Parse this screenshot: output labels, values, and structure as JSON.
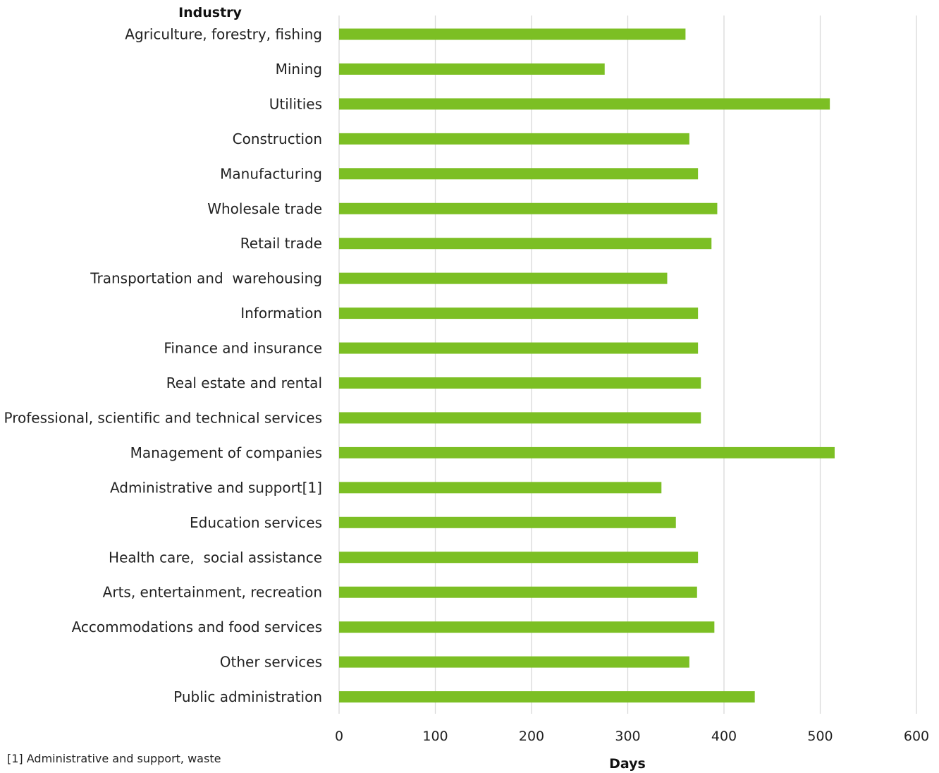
{
  "chart_data": {
    "type": "bar",
    "orientation": "horizontal",
    "y_column_title": "Industry",
    "xlabel": "Days",
    "xlim": [
      0,
      600
    ],
    "xticks": [
      0,
      100,
      200,
      300,
      400,
      500,
      600
    ],
    "grid": true,
    "bar_color": "#7cbf24",
    "categories": [
      "Agriculture, forestry, fishing",
      "Mining",
      "Utilities",
      "Construction",
      "Manufacturing",
      "Wholesale trade",
      "Retail trade",
      "Transportation and  warehousing",
      "Information",
      "Finance and insurance",
      "Real estate and rental",
      "Professional, scientific and technical services",
      "Management of companies",
      "Administrative and support[1]",
      "Education services",
      "Health care,  social assistance",
      "Arts, entertainment, recreation",
      "Accommodations and food services",
      "Other services",
      "Public administration"
    ],
    "values": [
      360,
      276,
      510,
      364,
      373,
      393,
      387,
      341,
      373,
      373,
      376,
      376,
      515,
      335,
      350,
      373,
      372,
      390,
      364,
      432
    ]
  },
  "footnote": "[1] Administrative and support, waste"
}
